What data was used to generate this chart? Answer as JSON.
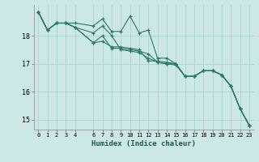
{
  "xlabel": "Humidex (Indice chaleur)",
  "background_color": "#cce8e4",
  "grid_color": "#aad4cc",
  "line_color": "#2a7a6a",
  "xlim": [
    -0.5,
    23.5
  ],
  "ylim": [
    14.65,
    19.1
  ],
  "yticks": [
    15,
    16,
    17,
    18
  ],
  "xticks": [
    0,
    1,
    2,
    3,
    4,
    6,
    7,
    8,
    9,
    10,
    11,
    12,
    13,
    14,
    15,
    16,
    17,
    18,
    19,
    20,
    21,
    22,
    23
  ],
  "x_vals": [
    0,
    1,
    2,
    3,
    4,
    6,
    7,
    8,
    9,
    10,
    11,
    12,
    13,
    14,
    15,
    16,
    17,
    18,
    19,
    20,
    21,
    22,
    23
  ],
  "series": [
    [
      18.85,
      18.2,
      18.45,
      18.45,
      18.45,
      18.35,
      18.6,
      18.15,
      18.15,
      18.7,
      18.1,
      18.2,
      17.2,
      17.2,
      17.0,
      16.55,
      16.55,
      16.75,
      16.75,
      16.6,
      16.2,
      15.4,
      14.8
    ],
    [
      18.85,
      18.2,
      18.45,
      18.45,
      18.3,
      17.75,
      17.8,
      17.6,
      17.6,
      17.55,
      17.5,
      17.1,
      17.1,
      17.05,
      17.0,
      16.55,
      16.55,
      16.75,
      16.75,
      16.6,
      16.2,
      15.4,
      14.8
    ],
    [
      18.85,
      18.2,
      18.45,
      18.45,
      18.3,
      17.75,
      18.0,
      17.55,
      17.55,
      17.5,
      17.45,
      17.35,
      17.05,
      17.0,
      17.0,
      16.55,
      16.55,
      16.75,
      16.75,
      16.6,
      16.2,
      15.4,
      14.8
    ],
    [
      18.85,
      18.2,
      18.45,
      18.45,
      18.3,
      18.1,
      18.35,
      18.0,
      17.5,
      17.45,
      17.4,
      17.2,
      17.05,
      17.0,
      16.95,
      16.55,
      16.55,
      16.75,
      16.75,
      16.6,
      16.2,
      15.4,
      14.8
    ]
  ]
}
